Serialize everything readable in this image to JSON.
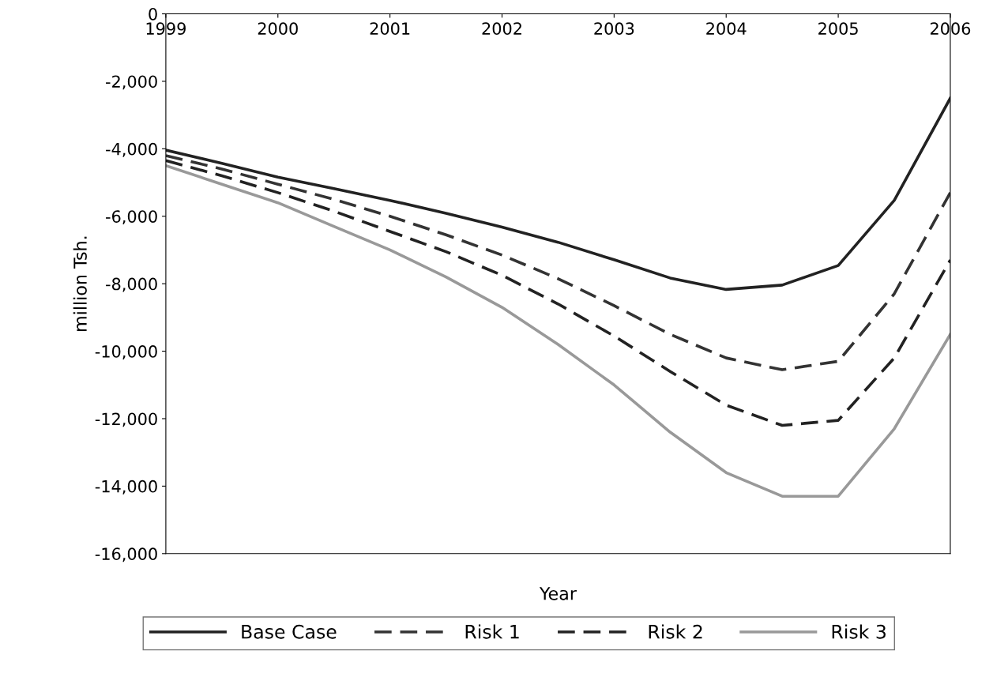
{
  "chart_data": {
    "type": "line",
    "xlabel": "Year",
    "ylabel": "million Tsh.",
    "x": [
      1999,
      1999.5,
      2000,
      2000.5,
      2001,
      2001.5,
      2002,
      2002.5,
      2003,
      2003.5,
      2004,
      2004.5,
      2005,
      2005.5,
      2006
    ],
    "series": [
      {
        "name": "Base Case",
        "color": "#222222",
        "line_style": "solid",
        "values": [
          -4040,
          -4430,
          -4840,
          -5180,
          -5530,
          -5910,
          -6320,
          -6770,
          -7290,
          -7830,
          -8170,
          -8040,
          -7460,
          -5530,
          -2500
        ]
      },
      {
        "name": "Risk 1",
        "color": "#333333",
        "line_style": "dashed",
        "values": [
          -4200,
          -4600,
          -5050,
          -5500,
          -6000,
          -6550,
          -7150,
          -7850,
          -8650,
          -9500,
          -10200,
          -10550,
          -10300,
          -8300,
          -5300
        ]
      },
      {
        "name": "Risk 2",
        "color": "#222222",
        "line_style": "dashed",
        "values": [
          -4350,
          -4800,
          -5300,
          -5850,
          -6450,
          -7050,
          -7750,
          -8600,
          -9550,
          -10600,
          -11600,
          -12200,
          -12050,
          -10200,
          -7300
        ]
      },
      {
        "name": "Risk 3",
        "color": "#999999",
        "line_style": "solid",
        "values": [
          -4500,
          -5050,
          -5600,
          -6300,
          -7000,
          -7800,
          -8700,
          -9800,
          -11000,
          -12400,
          -13600,
          -14300,
          -14300,
          -12300,
          -9500
        ]
      }
    ],
    "xlim": [
      1999,
      2006
    ],
    "xticks": [
      1999,
      2000,
      2001,
      2002,
      2003,
      2004,
      2005,
      2006
    ],
    "ylim": [
      -16000,
      0
    ],
    "yticks": [
      {
        "value": -16000,
        "label": "-16,000"
      },
      {
        "value": -14000,
        "label": "-14,000"
      },
      {
        "value": -12000,
        "label": "-12,000"
      },
      {
        "value": -10000,
        "label": "-10,000"
      },
      {
        "value": -8000,
        "label": "-8,000"
      },
      {
        "value": -6000,
        "label": "-6,000"
      },
      {
        "value": -4000,
        "label": "-4,000"
      },
      {
        "value": -2000,
        "label": "-2,000"
      },
      {
        "value": 0,
        "label": "0"
      }
    ],
    "grid": false,
    "legend": "bottom",
    "marker": "none"
  }
}
